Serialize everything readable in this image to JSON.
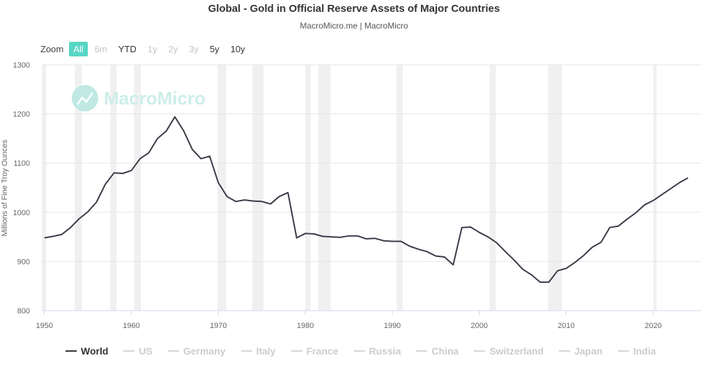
{
  "title": "Global - Gold in Official Reserve Assets of Major Countries",
  "subtitle": "MacroMicro.me | MacroMicro",
  "watermark": "MacroMicro",
  "zoom": {
    "label": "Zoom",
    "buttons": [
      {
        "label": "All",
        "state": "active"
      },
      {
        "label": "6m",
        "state": "disabled"
      },
      {
        "label": "YTD",
        "state": "enabled"
      },
      {
        "label": "1y",
        "state": "disabled"
      },
      {
        "label": "2y",
        "state": "disabled"
      },
      {
        "label": "3y",
        "state": "disabled"
      },
      {
        "label": "5y",
        "state": "enabled"
      },
      {
        "label": "10y",
        "state": "enabled"
      }
    ]
  },
  "legend": [
    {
      "label": "World",
      "active": true
    },
    {
      "label": "US",
      "active": false
    },
    {
      "label": "Germany",
      "active": false
    },
    {
      "label": "Italy",
      "active": false
    },
    {
      "label": "France",
      "active": false
    },
    {
      "label": "Russia",
      "active": false
    },
    {
      "label": "China",
      "active": false
    },
    {
      "label": "Switzerland",
      "active": false
    },
    {
      "label": "Japan",
      "active": false
    },
    {
      "label": "India",
      "active": false
    }
  ],
  "colors": {
    "line": "#3a3a48",
    "recession": "#f0f0f0",
    "grid": "#e6e6e6",
    "accent": "#58d6c5",
    "watermark": "#bfe9e2"
  },
  "chart_data": {
    "type": "line",
    "title": "Global - Gold in Official Reserve Assets of Major Countries",
    "xlabel": "",
    "ylabel": "Millions of Fine Troy Ounces",
    "xlim": [
      1949.7,
      2025.5
    ],
    "ylim": [
      800,
      1300
    ],
    "yticks": [
      800,
      900,
      1000,
      1100,
      1200,
      1300
    ],
    "xticks": [
      1950,
      1960,
      1970,
      1980,
      1990,
      2000,
      2010,
      2020
    ],
    "recession_bands": [
      [
        1949.7,
        1950.2
      ],
      [
        1953.5,
        1954.3
      ],
      [
        1957.6,
        1958.3
      ],
      [
        1960.3,
        1961.1
      ],
      [
        1969.9,
        1970.9
      ],
      [
        1973.9,
        1975.2
      ],
      [
        1980.0,
        1980.6
      ],
      [
        1981.5,
        1982.9
      ],
      [
        1990.5,
        1991.2
      ],
      [
        2001.2,
        2001.9
      ],
      [
        2007.9,
        2009.5
      ],
      [
        2020.0,
        2020.4
      ]
    ],
    "series": [
      {
        "name": "World",
        "x": [
          1950,
          1951,
          1952,
          1953,
          1954,
          1955,
          1956,
          1957,
          1958,
          1959,
          1960,
          1961,
          1962,
          1963,
          1964,
          1965,
          1966,
          1967,
          1968,
          1969,
          1970,
          1971,
          1972,
          1973,
          1974,
          1975,
          1976,
          1977,
          1978,
          1979,
          1980,
          1981,
          1982,
          1983,
          1984,
          1985,
          1986,
          1987,
          1988,
          1989,
          1990,
          1991,
          1992,
          1993,
          1994,
          1995,
          1996,
          1997,
          1998,
          1999,
          2000,
          2001,
          2002,
          2003,
          2004,
          2005,
          2006,
          2007,
          2008,
          2009,
          2010,
          2011,
          2012,
          2013,
          2014,
          2015,
          2016,
          2017,
          2018,
          2019,
          2020,
          2021,
          2022,
          2023,
          2024
        ],
        "values": [
          948,
          951,
          955,
          969,
          987,
          1001,
          1021,
          1057,
          1080,
          1079,
          1085,
          1109,
          1121,
          1150,
          1165,
          1194,
          1166,
          1128,
          1109,
          1114,
          1060,
          1032,
          1022,
          1025,
          1023,
          1022,
          1017,
          1032,
          1040,
          948,
          957,
          956,
          951,
          950,
          949,
          952,
          952,
          946,
          947,
          942,
          941,
          941,
          931,
          925,
          920,
          911,
          909,
          893,
          969,
          970,
          959,
          950,
          938,
          920,
          903,
          884,
          873,
          858,
          858,
          881,
          886,
          898,
          912,
          929,
          939,
          969,
          972,
          986,
          999,
          1015,
          1024,
          1036,
          1048,
          1060,
          1070
        ]
      }
    ]
  }
}
